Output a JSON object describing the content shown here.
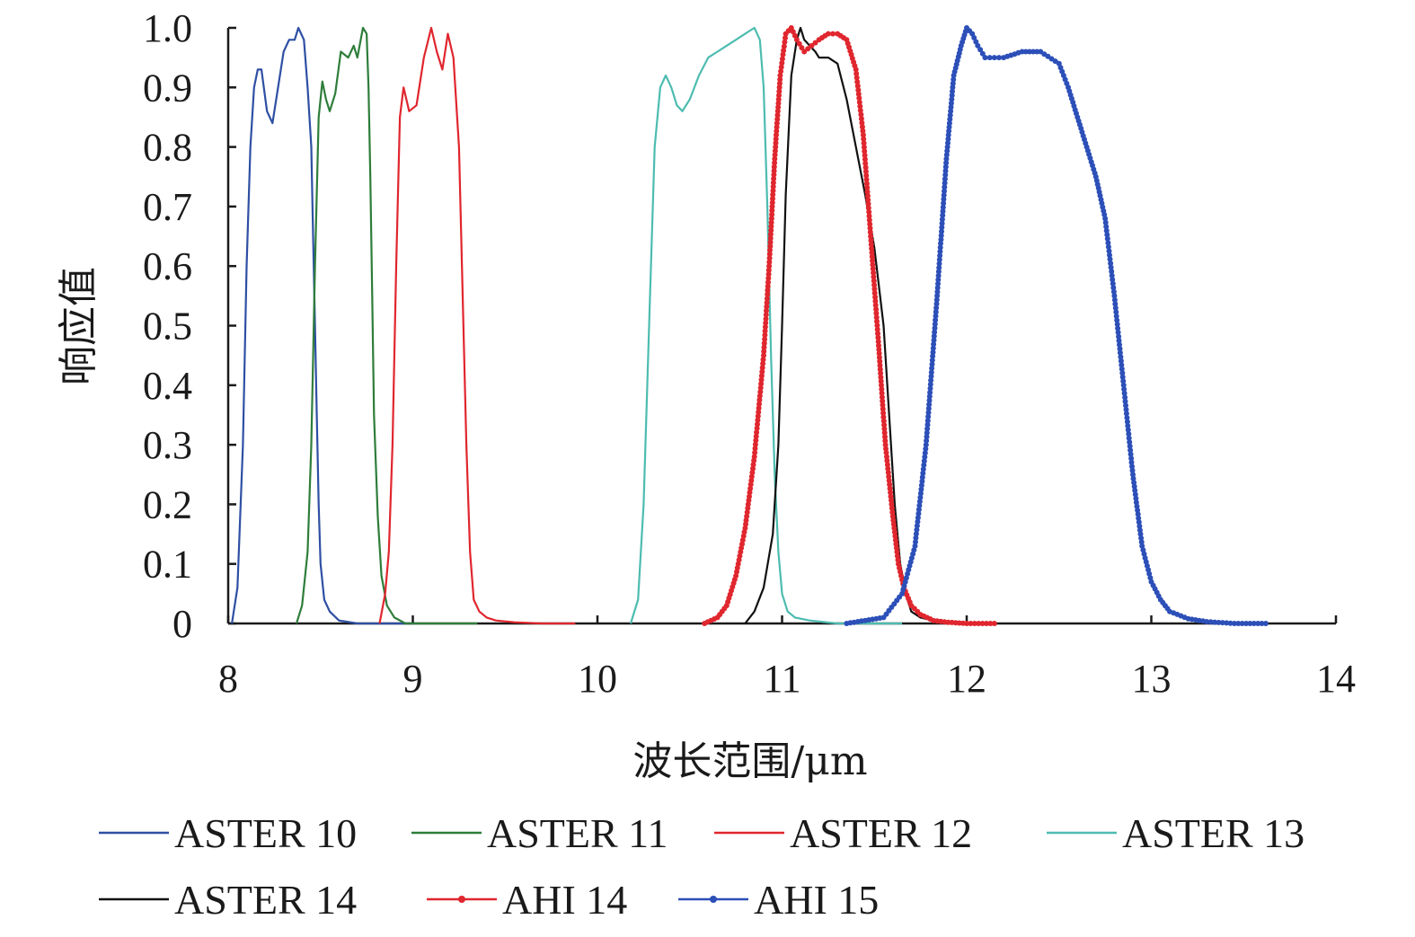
{
  "chart_data": {
    "type": "line",
    "title": "",
    "xlabel": "波长范围/μm",
    "ylabel": "响应值",
    "xlim": [
      8,
      14
    ],
    "ylim": [
      0,
      1
    ],
    "x_ticks": [
      8,
      9,
      10,
      11,
      12,
      13,
      14
    ],
    "x_tick_labels": [
      "8",
      "9",
      "10",
      "11",
      "12",
      "13",
      "14"
    ],
    "y_ticks": [
      0,
      0.1,
      0.2,
      0.3,
      0.4,
      0.5,
      0.6,
      0.7,
      0.8,
      0.9,
      1.0
    ],
    "y_tick_labels": [
      "0",
      "0.1",
      "0.2",
      "0.3",
      "0.4",
      "0.5",
      "0.6",
      "0.7",
      "0.8",
      "0.9",
      "1.0"
    ],
    "grid": false,
    "legend_position": "bottom",
    "series": [
      {
        "name": "ASTER 10",
        "color": "#2e4fa3",
        "marker": "none",
        "x": [
          8.02,
          8.05,
          8.08,
          8.1,
          8.12,
          8.14,
          8.16,
          8.18,
          8.21,
          8.24,
          8.27,
          8.3,
          8.33,
          8.36,
          8.38,
          8.41,
          8.43,
          8.45,
          8.46,
          8.47,
          8.48,
          8.49,
          8.5,
          8.52,
          8.55,
          8.6,
          8.7,
          8.85,
          9.0
        ],
        "y": [
          0.0,
          0.06,
          0.3,
          0.6,
          0.8,
          0.9,
          0.93,
          0.93,
          0.86,
          0.84,
          0.9,
          0.96,
          0.98,
          0.98,
          1.0,
          0.98,
          0.9,
          0.8,
          0.65,
          0.5,
          0.35,
          0.2,
          0.1,
          0.04,
          0.02,
          0.005,
          0.0,
          0.0,
          0.0
        ]
      },
      {
        "name": "ASTER 11",
        "color": "#2e7d3a",
        "marker": "none",
        "x": [
          8.37,
          8.4,
          8.43,
          8.45,
          8.47,
          8.49,
          8.51,
          8.53,
          8.55,
          8.58,
          8.61,
          8.65,
          8.68,
          8.7,
          8.73,
          8.75,
          8.76,
          8.77,
          8.78,
          8.79,
          8.81,
          8.83,
          8.86,
          8.9,
          8.96,
          9.05,
          9.2,
          9.35
        ],
        "y": [
          0.0,
          0.03,
          0.12,
          0.3,
          0.6,
          0.85,
          0.91,
          0.88,
          0.86,
          0.89,
          0.96,
          0.95,
          0.97,
          0.95,
          1.0,
          0.99,
          0.9,
          0.75,
          0.55,
          0.35,
          0.18,
          0.08,
          0.03,
          0.01,
          0.0,
          0.0,
          0.0,
          0.0
        ]
      },
      {
        "name": "ASTER 12",
        "color": "#e0262e",
        "marker": "none",
        "x": [
          8.82,
          8.85,
          8.87,
          8.89,
          8.91,
          8.93,
          8.95,
          8.98,
          9.02,
          9.06,
          9.1,
          9.13,
          9.16,
          9.19,
          9.22,
          9.25,
          9.27,
          9.29,
          9.31,
          9.33,
          9.36,
          9.4,
          9.45,
          9.55,
          9.7,
          9.88
        ],
        "y": [
          0.0,
          0.05,
          0.12,
          0.3,
          0.6,
          0.85,
          0.9,
          0.86,
          0.87,
          0.95,
          1.0,
          0.96,
          0.93,
          0.99,
          0.95,
          0.8,
          0.55,
          0.3,
          0.12,
          0.04,
          0.02,
          0.01,
          0.005,
          0.002,
          0.0,
          0.0
        ]
      },
      {
        "name": "ASTER 13",
        "color": "#4dbcb0",
        "marker": "none",
        "x": [
          10.18,
          10.22,
          10.25,
          10.28,
          10.31,
          10.34,
          10.37,
          10.4,
          10.43,
          10.46,
          10.5,
          10.55,
          10.6,
          10.65,
          10.7,
          10.75,
          10.8,
          10.85,
          10.88,
          10.9,
          10.92,
          10.94,
          10.96,
          10.98,
          11.0,
          11.03,
          11.07,
          11.15,
          11.3,
          11.5,
          11.65
        ],
        "y": [
          0.0,
          0.04,
          0.2,
          0.5,
          0.8,
          0.9,
          0.92,
          0.9,
          0.87,
          0.86,
          0.88,
          0.92,
          0.95,
          0.96,
          0.97,
          0.98,
          0.99,
          1.0,
          0.98,
          0.9,
          0.7,
          0.45,
          0.25,
          0.12,
          0.05,
          0.02,
          0.01,
          0.005,
          0.0,
          0.0,
          0.0
        ]
      },
      {
        "name": "ASTER 14",
        "color": "#111111",
        "marker": "none",
        "x": [
          10.8,
          10.85,
          10.9,
          10.95,
          10.98,
          11.0,
          11.02,
          11.05,
          11.08,
          11.1,
          11.12,
          11.15,
          11.18,
          11.2,
          11.25,
          11.3,
          11.35,
          11.4,
          11.45,
          11.5,
          11.55,
          11.58,
          11.61,
          11.64,
          11.67,
          11.7,
          11.75,
          11.82,
          11.9
        ],
        "y": [
          0.0,
          0.02,
          0.06,
          0.15,
          0.3,
          0.5,
          0.72,
          0.92,
          0.98,
          1.0,
          0.98,
          0.97,
          0.96,
          0.95,
          0.95,
          0.94,
          0.88,
          0.8,
          0.72,
          0.63,
          0.5,
          0.35,
          0.2,
          0.1,
          0.05,
          0.02,
          0.01,
          0.005,
          0.0
        ]
      },
      {
        "name": "AHI 14",
        "color": "#e0262e",
        "marker": "dot",
        "x": [
          10.58,
          10.65,
          10.7,
          10.75,
          10.8,
          10.85,
          10.9,
          10.93,
          10.96,
          10.99,
          11.02,
          11.05,
          11.08,
          11.12,
          11.16,
          11.2,
          11.25,
          11.3,
          11.35,
          11.4,
          11.44,
          11.48,
          11.52,
          11.56,
          11.6,
          11.63,
          11.66,
          11.7,
          11.75,
          11.82,
          11.9,
          12.0,
          12.15
        ],
        "y": [
          0.0,
          0.01,
          0.03,
          0.08,
          0.16,
          0.28,
          0.45,
          0.6,
          0.78,
          0.92,
          0.99,
          1.0,
          0.98,
          0.96,
          0.97,
          0.98,
          0.99,
          0.99,
          0.98,
          0.93,
          0.82,
          0.65,
          0.48,
          0.3,
          0.18,
          0.1,
          0.06,
          0.03,
          0.015,
          0.005,
          0.002,
          0.0,
          0.0
        ]
      },
      {
        "name": "AHI 15",
        "color": "#2c4fb8",
        "marker": "dot",
        "x": [
          11.35,
          11.45,
          11.55,
          11.65,
          11.72,
          11.78,
          11.84,
          11.89,
          11.93,
          11.97,
          12.0,
          12.03,
          12.06,
          12.1,
          12.15,
          12.2,
          12.3,
          12.4,
          12.5,
          12.55,
          12.6,
          12.65,
          12.7,
          12.75,
          12.8,
          12.85,
          12.9,
          12.95,
          13.0,
          13.05,
          13.1,
          13.2,
          13.3,
          13.45,
          13.62
        ],
        "y": [
          0.0,
          0.005,
          0.01,
          0.05,
          0.13,
          0.3,
          0.55,
          0.78,
          0.92,
          0.97,
          1.0,
          0.99,
          0.97,
          0.95,
          0.95,
          0.95,
          0.96,
          0.96,
          0.94,
          0.9,
          0.85,
          0.8,
          0.75,
          0.68,
          0.55,
          0.4,
          0.25,
          0.13,
          0.07,
          0.04,
          0.02,
          0.008,
          0.003,
          0.0,
          0.0
        ]
      }
    ]
  }
}
